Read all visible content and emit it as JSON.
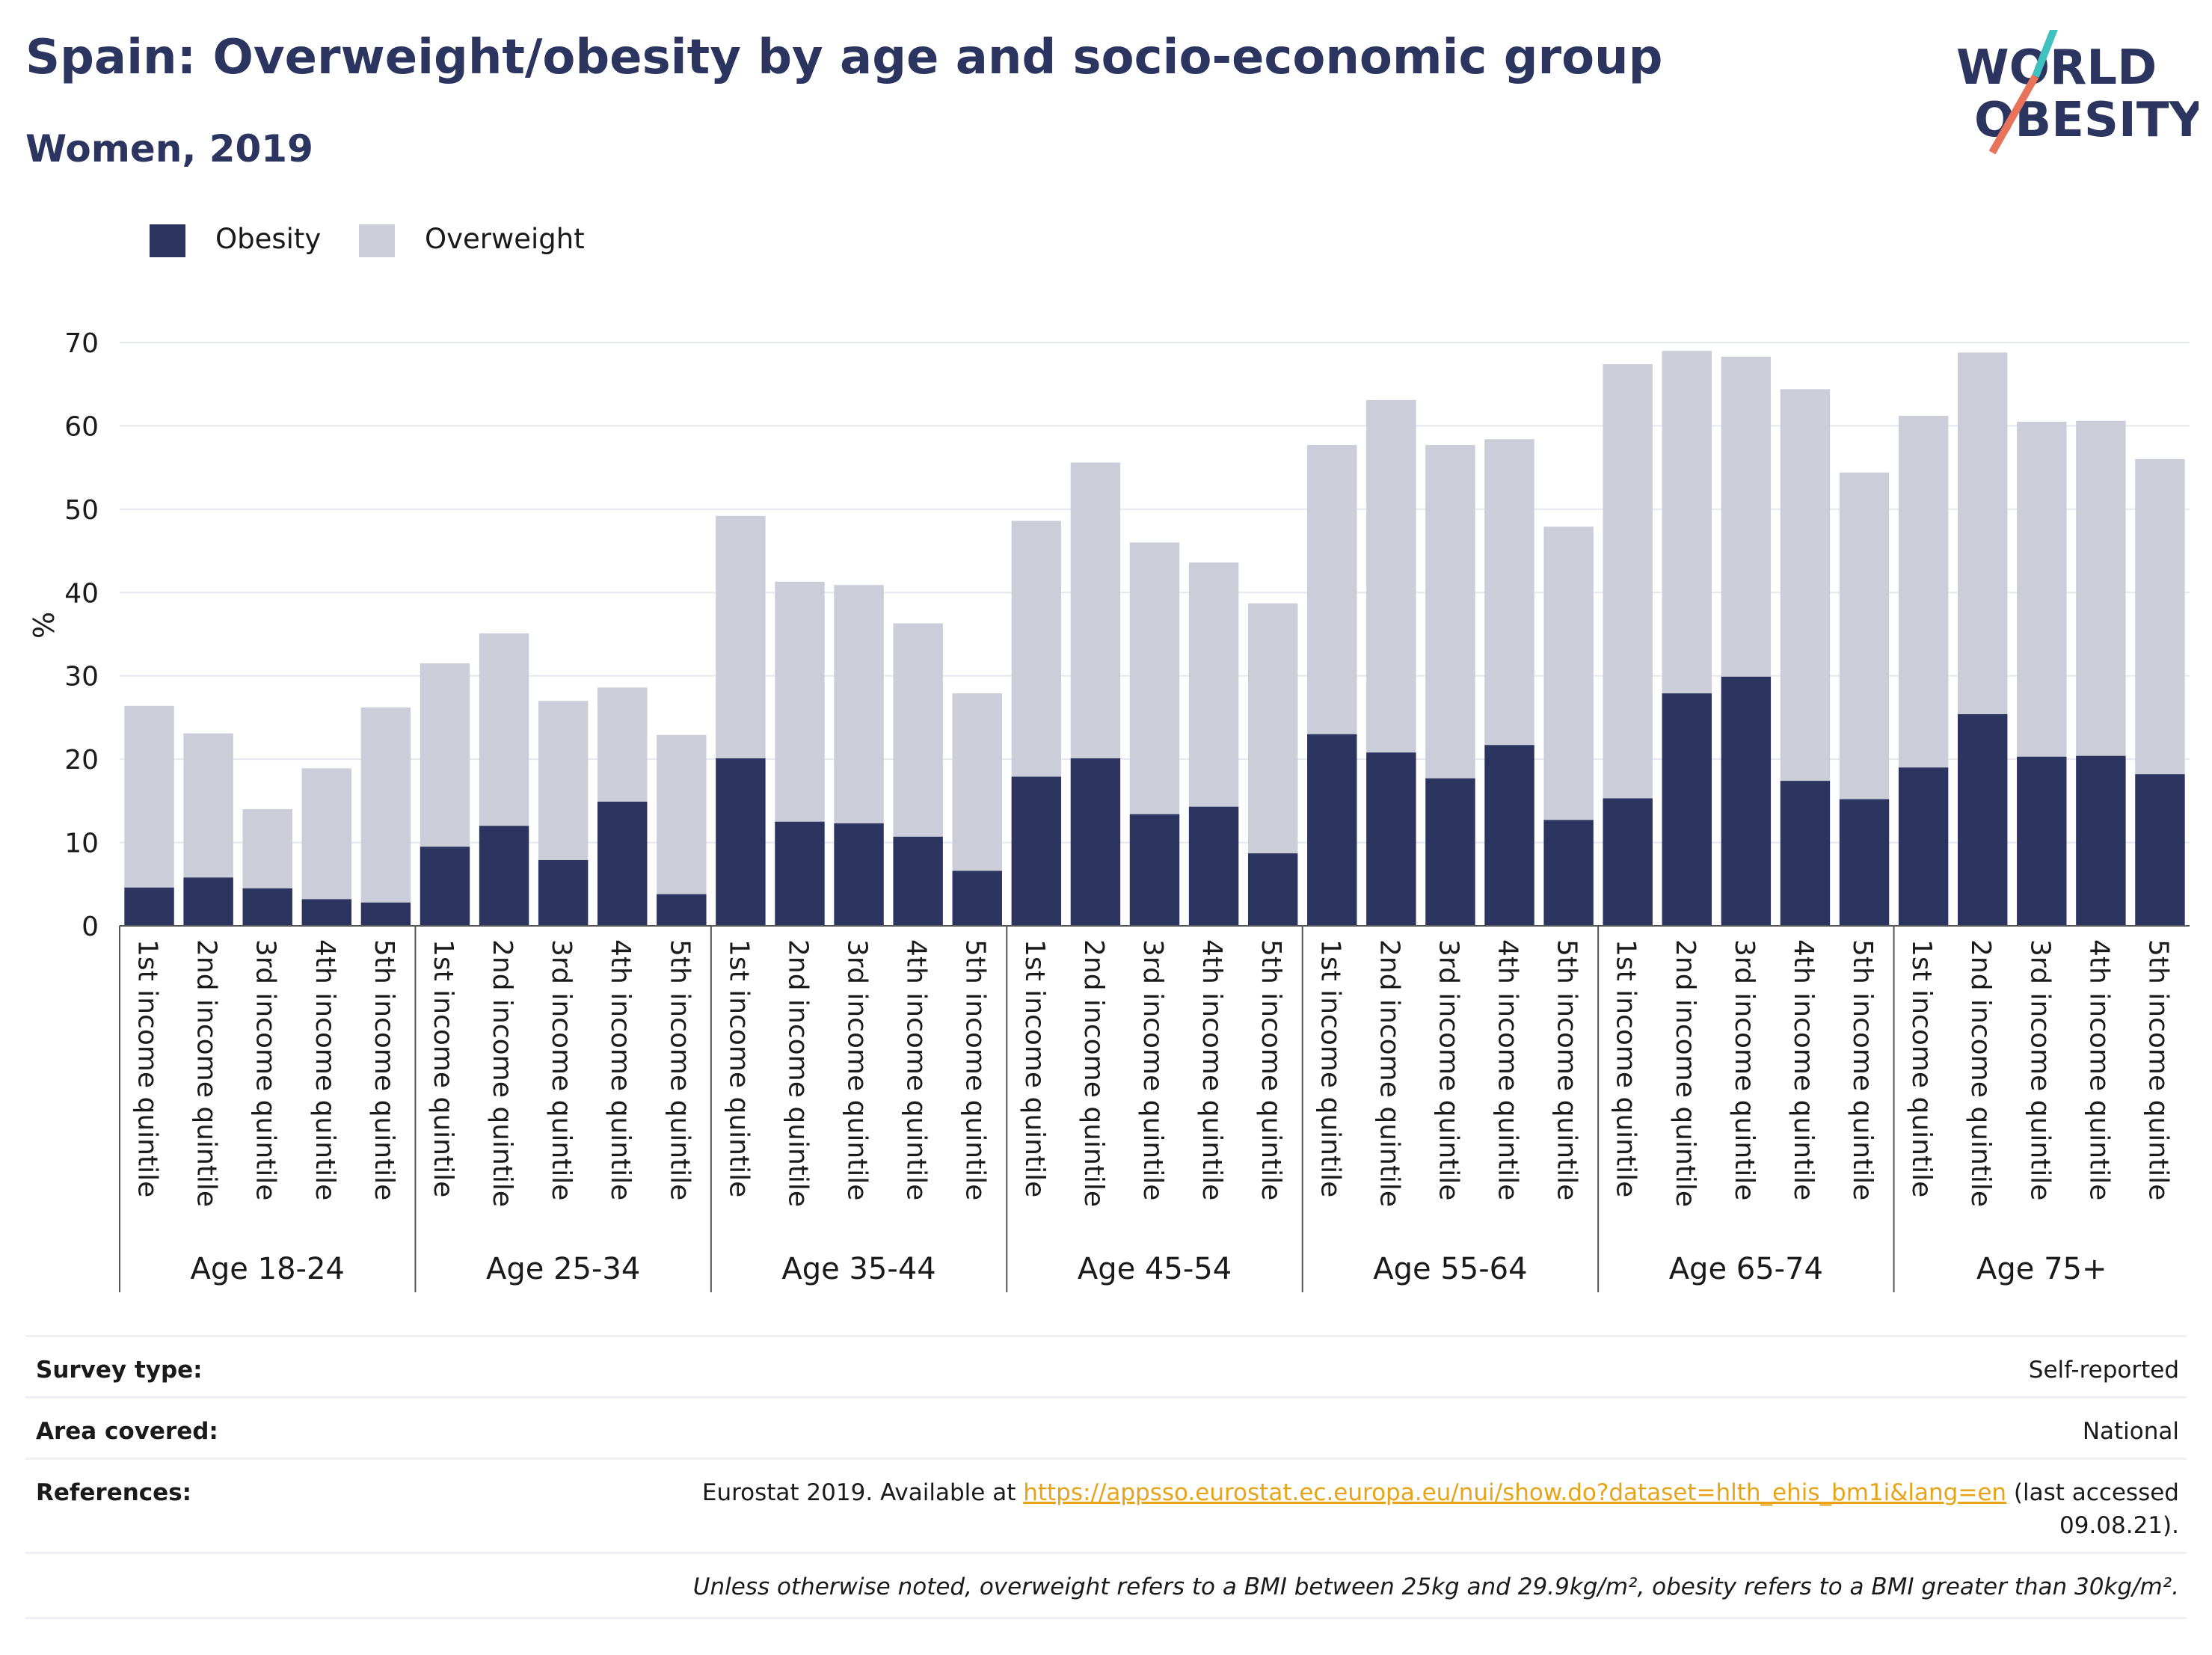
{
  "header": {
    "title": "Spain: Overweight/obesity by age and socio-economic group",
    "subtitle": "Women, 2019"
  },
  "logo": {
    "line1": "WORLD",
    "line2": "OBESITY"
  },
  "colors": {
    "obesity": "#2b3560",
    "overweight": "#cbcdd9",
    "grid": "#e6e8ef",
    "accent_teal": "#3fc1c0",
    "accent_coral": "#e8735a"
  },
  "chart_data": {
    "type": "bar",
    "stacked": true,
    "ylabel": "%",
    "ylim": [
      0,
      70
    ],
    "yticks": [
      0,
      10,
      20,
      30,
      40,
      50,
      60,
      70
    ],
    "grid": true,
    "legend_position": "top-left",
    "categories": [
      "1st income quintile",
      "2nd income quintile",
      "3rd income quintile",
      "4th income quintile",
      "5th income quintile"
    ],
    "groups": [
      "Age 18-24",
      "Age 25-34",
      "Age 35-44",
      "Age 45-54",
      "Age 55-64",
      "Age 65-74",
      "Age 75+"
    ],
    "series": [
      {
        "name": "Obesity",
        "values": [
          [
            4.6,
            5.8,
            4.5,
            3.2,
            2.8
          ],
          [
            9.5,
            12.0,
            7.9,
            14.9,
            3.8
          ],
          [
            20.1,
            12.5,
            12.3,
            10.7,
            6.6
          ],
          [
            17.9,
            20.1,
            13.4,
            14.3,
            8.7
          ],
          [
            23.0,
            20.8,
            17.7,
            21.7,
            12.7
          ],
          [
            15.3,
            27.9,
            29.9,
            17.4,
            15.2
          ],
          [
            19.0,
            25.4,
            20.3,
            20.4,
            18.2
          ]
        ]
      },
      {
        "name": "Overweight",
        "values": [
          [
            21.8,
            17.3,
            9.5,
            15.7,
            23.4
          ],
          [
            22.0,
            23.1,
            19.1,
            13.7,
            19.1
          ],
          [
            29.1,
            28.8,
            28.6,
            25.6,
            21.3
          ],
          [
            30.7,
            35.5,
            32.6,
            29.3,
            30.0
          ],
          [
            34.7,
            42.3,
            40.0,
            36.7,
            35.2
          ],
          [
            52.1,
            41.1,
            38.4,
            47.0,
            39.2
          ],
          [
            42.2,
            43.4,
            40.2,
            40.2,
            37.8
          ]
        ]
      }
    ]
  },
  "info": {
    "survey_type_label": "Survey type:",
    "survey_type_value": "Self-reported",
    "area_label": "Area covered:",
    "area_value": "National",
    "references_label": "References:",
    "references_prefix": "Eurostat 2019. Available at ",
    "references_link": "https://appsso.eurostat.ec.europa.eu/nui/show.do?dataset=hlth_ehis_bm1i&lang=en",
    "references_suffix": " (last accessed",
    "references_line2": "09.08.21).",
    "note": "Unless otherwise noted, overweight refers to a BMI between 25kg and 29.9kg/m², obesity refers to a BMI greater than 30kg/m²."
  }
}
